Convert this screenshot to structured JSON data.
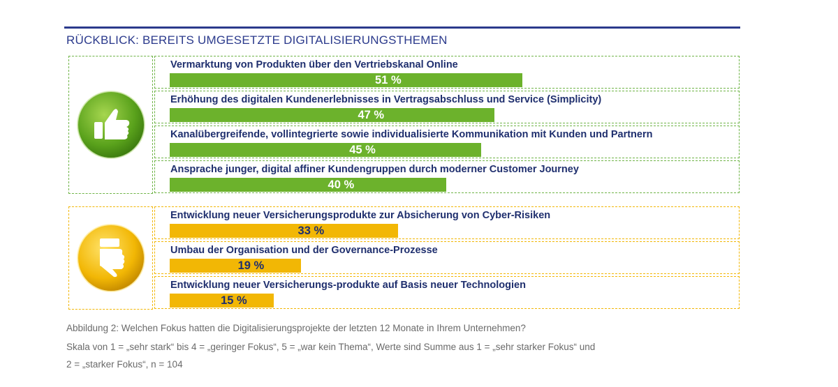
{
  "title": "RÜCKBLICK: BEREITS UMGESETZTE DIGITALISIERUNGSTHEMEN",
  "colors": {
    "heading": "#2b3a8c",
    "label": "#1f2f6e",
    "green_bar": "#6cb22c",
    "yellow_bar": "#f2b705",
    "caption": "#6a6a6a"
  },
  "icons": {
    "positive": "thumbs-up-icon",
    "neutral": "thumbs-sideways-icon"
  },
  "chart_data": {
    "type": "bar",
    "orientation": "horizontal",
    "title": "RÜCKBLICK: BEREITS UMGESETZTE DIGITALISIERUNGSTHEMEN",
    "unit": "%",
    "xlim": [
      0,
      100
    ],
    "groups": [
      {
        "name": "positive",
        "icon": "thumbs-up-icon",
        "color": "#6cb22c",
        "items": [
          {
            "label": "Vermarktung von Produkten über den Vertriebskanal Online",
            "value": 51,
            "value_label": "51 %"
          },
          {
            "label": "Erhöhung des digitalen Kundenerlebnisses in Vertragsabschluss und Service (Simplicity)",
            "value": 47,
            "value_label": "47 %"
          },
          {
            "label": "Kanalübergreifende, vollintegrierte sowie individualisierte Kommunikation mit Kunden und Partnern",
            "value": 45,
            "value_label": "45 %"
          },
          {
            "label": "Ansprache junger, digital affiner Kundengruppen durch moderner Customer Journey",
            "value": 40,
            "value_label": "40 %"
          }
        ]
      },
      {
        "name": "neutral",
        "icon": "thumbs-sideways-icon",
        "color": "#f2b705",
        "items": [
          {
            "label": "Entwicklung neuer Versicherungsprodukte zur Absicherung von Cyber-Risiken",
            "value": 33,
            "value_label": "33 %"
          },
          {
            "label": "Umbau der Organisation und der Governance-Prozesse",
            "value": 19,
            "value_label": "19 %"
          },
          {
            "label": "Entwicklung neuer Versicherungs-produkte auf Basis neuer Technologien",
            "value": 15,
            "value_label": "15 %"
          }
        ]
      }
    ]
  },
  "caption": {
    "line1": "Abbildung 2: Welchen Fokus hatten die Digitalisierungsprojekte der letzten 12 Monate in Ihrem Unternehmen?",
    "line2": "Skala von 1 = „sehr stark“ bis 4 = „geringer Fokus“, 5 = „war kein Thema“, Werte sind Summe aus 1 = „sehr starker Fokus“ und",
    "line3": "2 = „starker Fokus“, n = 104"
  }
}
